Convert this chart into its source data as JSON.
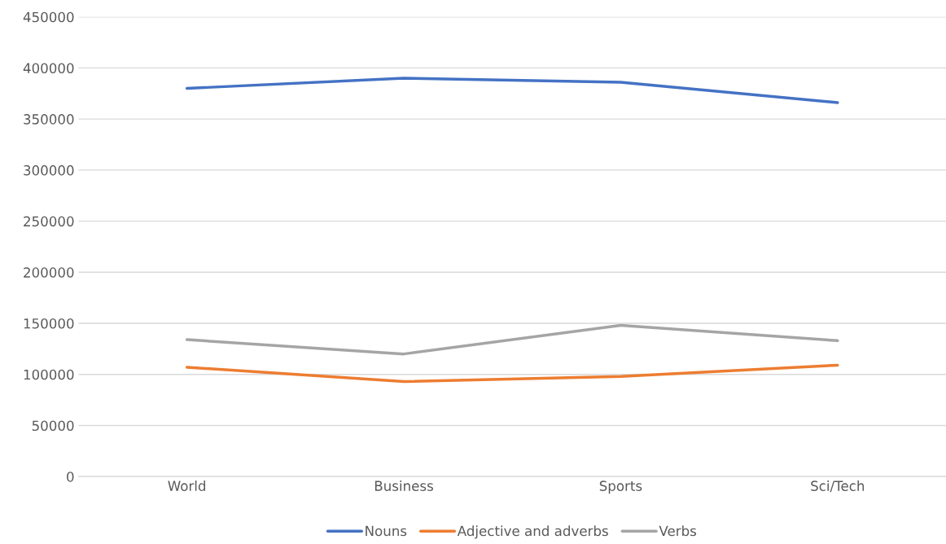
{
  "chart_data": {
    "type": "line",
    "categories": [
      "World",
      "Business",
      "Sports",
      "Sci/Tech"
    ],
    "series": [
      {
        "name": "Nouns",
        "color": "#4472c4",
        "values": [
          380000,
          390000,
          386000,
          366000
        ]
      },
      {
        "name": "Adjective and adverbs",
        "color": "#ed7d31",
        "values": [
          107000,
          93000,
          98000,
          109000
        ]
      },
      {
        "name": "Verbs",
        "color": "#a5a5a5",
        "values": [
          134000,
          120000,
          148000,
          133000
        ]
      }
    ],
    "ylim": [
      0,
      450000
    ],
    "yticks": [
      0,
      50000,
      100000,
      150000,
      200000,
      250000,
      300000,
      350000,
      400000,
      450000
    ],
    "grid": "y",
    "legend": "bottom",
    "marker": "none",
    "line_style": "solid"
  }
}
